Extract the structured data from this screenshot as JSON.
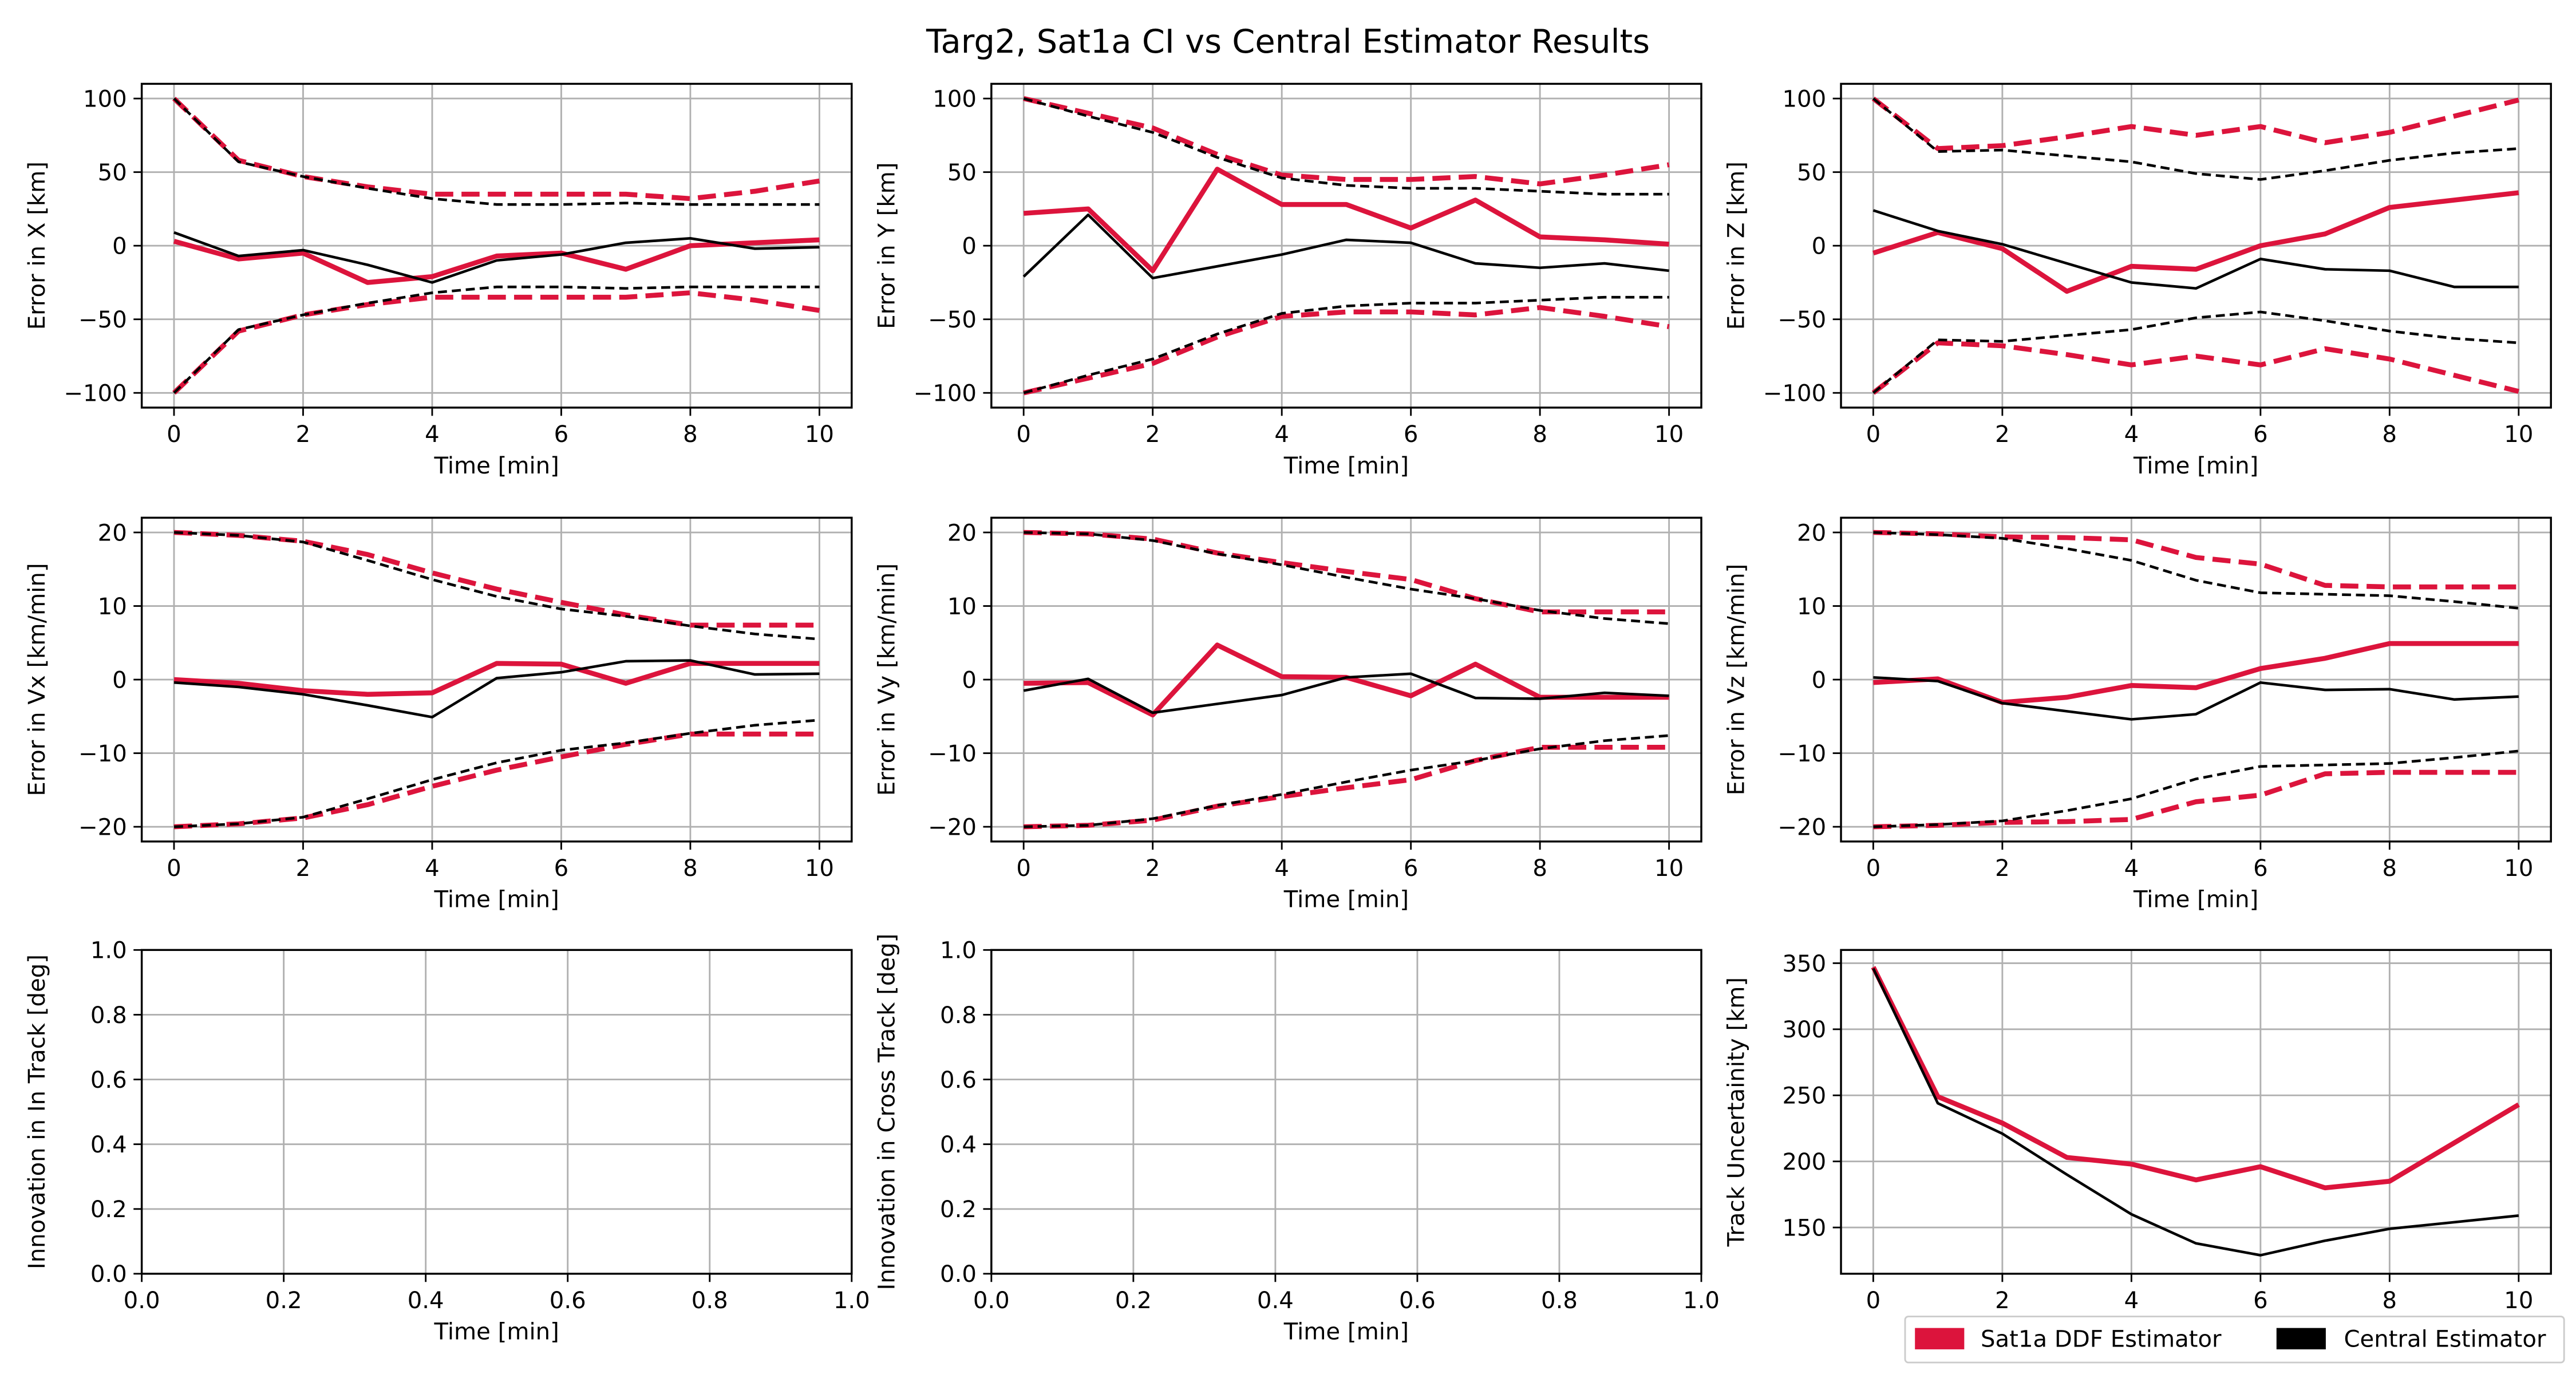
{
  "figure_title": "Targ2, Sat1a CI vs Central Estimator Results",
  "colors": {
    "ddf": "#dc143c",
    "central": "#000000",
    "grid": "#b0b0b0"
  },
  "legend": {
    "placement": "bottom-right",
    "entries": [
      {
        "label": "Sat1a DDF Estimator",
        "color": "#dc143c"
      },
      {
        "label": "Central Estimator",
        "color": "#000000"
      }
    ]
  },
  "chart_data": [
    {
      "type": "line",
      "ylabel": "Error in X [km]",
      "xlabel": "Time [min]",
      "xlim": [
        -0.5,
        10.5
      ],
      "ylim": [
        -110,
        110
      ],
      "xticks": [
        0,
        2,
        4,
        6,
        8,
        10
      ],
      "yticks": [
        -100,
        -50,
        0,
        50,
        100
      ],
      "yticklabels": [
        "−100",
        "−50",
        "0",
        "50",
        "100"
      ],
      "x": [
        0,
        1,
        2,
        3,
        4,
        5,
        6,
        7,
        8,
        9,
        10
      ],
      "series": [
        {
          "role": "ddf",
          "style": "solid",
          "values": [
            3,
            -9,
            -5,
            -25,
            -21,
            -7,
            -5,
            -16,
            0,
            2,
            4
          ]
        },
        {
          "role": "ddf",
          "style": "dashed",
          "values": [
            100,
            58,
            47,
            40,
            35,
            35,
            35,
            35,
            32,
            37,
            44
          ]
        },
        {
          "role": "ddf",
          "style": "dashed",
          "values": [
            -100,
            -58,
            -47,
            -40,
            -35,
            -35,
            -35,
            -35,
            -32,
            -37,
            -44
          ]
        },
        {
          "role": "central",
          "style": "solid",
          "values": [
            9,
            -7,
            -3,
            -13,
            -25,
            -10,
            -6,
            2,
            5,
            -2,
            -1
          ]
        },
        {
          "role": "central",
          "style": "dashed",
          "values": [
            100,
            57,
            47,
            39,
            32,
            28,
            28,
            29,
            28,
            28,
            28
          ]
        },
        {
          "role": "central",
          "style": "dashed",
          "values": [
            -100,
            -57,
            -47,
            -39,
            -32,
            -28,
            -28,
            -29,
            -28,
            -28,
            -28
          ]
        }
      ]
    },
    {
      "type": "line",
      "ylabel": "Error in Y [km]",
      "xlabel": "Time [min]",
      "xlim": [
        -0.5,
        10.5
      ],
      "ylim": [
        -110,
        110
      ],
      "xticks": [
        0,
        2,
        4,
        6,
        8,
        10
      ],
      "yticks": [
        -100,
        -50,
        0,
        50,
        100
      ],
      "yticklabels": [
        "−100",
        "−50",
        "0",
        "50",
        "100"
      ],
      "x": [
        0,
        1,
        2,
        3,
        4,
        5,
        6,
        7,
        8,
        9,
        10
      ],
      "series": [
        {
          "role": "ddf",
          "style": "solid",
          "values": [
            22,
            25,
            -17,
            52,
            28,
            28,
            12,
            31,
            6,
            4,
            1
          ]
        },
        {
          "role": "ddf",
          "style": "dashed",
          "values": [
            100,
            90,
            80,
            62,
            48,
            45,
            45,
            47,
            42,
            48,
            55
          ]
        },
        {
          "role": "ddf",
          "style": "dashed",
          "values": [
            -100,
            -90,
            -80,
            -62,
            -48,
            -45,
            -45,
            -47,
            -42,
            -48,
            -55
          ]
        },
        {
          "role": "central",
          "style": "solid",
          "values": [
            -21,
            21,
            -22,
            -14,
            -6,
            4,
            2,
            -12,
            -15,
            -12,
            -17
          ]
        },
        {
          "role": "central",
          "style": "dashed",
          "values": [
            100,
            88,
            77,
            60,
            46,
            41,
            39,
            39,
            37,
            35,
            35
          ]
        },
        {
          "role": "central",
          "style": "dashed",
          "values": [
            -100,
            -88,
            -77,
            -60,
            -46,
            -41,
            -39,
            -39,
            -37,
            -35,
            -35
          ]
        }
      ]
    },
    {
      "type": "line",
      "ylabel": "Error in Z [km]",
      "xlabel": "Time [min]",
      "xlim": [
        -0.5,
        10.5
      ],
      "ylim": [
        -110,
        110
      ],
      "xticks": [
        0,
        2,
        4,
        6,
        8,
        10
      ],
      "yticks": [
        -100,
        -50,
        0,
        50,
        100
      ],
      "yticklabels": [
        "−100",
        "−50",
        "0",
        "50",
        "100"
      ],
      "x": [
        0,
        1,
        2,
        3,
        4,
        5,
        6,
        7,
        8,
        9,
        10
      ],
      "series": [
        {
          "role": "ddf",
          "style": "solid",
          "values": [
            -5,
            9,
            -2,
            -31,
            -14,
            -16,
            0,
            8,
            26,
            31,
            36
          ]
        },
        {
          "role": "ddf",
          "style": "dashed",
          "values": [
            100,
            66,
            68,
            74,
            81,
            75,
            81,
            70,
            77,
            88,
            99
          ]
        },
        {
          "role": "ddf",
          "style": "dashed",
          "values": [
            -100,
            -66,
            -68,
            -74,
            -81,
            -75,
            -81,
            -70,
            -77,
            -88,
            -99
          ]
        },
        {
          "role": "central",
          "style": "solid",
          "values": [
            24,
            10,
            1,
            -12,
            -25,
            -29,
            -9,
            -16,
            -17,
            -28,
            -28
          ]
        },
        {
          "role": "central",
          "style": "dashed",
          "values": [
            100,
            64,
            65,
            61,
            57,
            49,
            45,
            51,
            58,
            63,
            66
          ]
        },
        {
          "role": "central",
          "style": "dashed",
          "values": [
            -100,
            -64,
            -65,
            -61,
            -57,
            -49,
            -45,
            -51,
            -58,
            -63,
            -66
          ]
        }
      ]
    },
    {
      "type": "line",
      "ylabel": "Error in Vx [km/min]",
      "xlabel": "Time [min]",
      "xlim": [
        -0.5,
        10.5
      ],
      "ylim": [
        -22,
        22
      ],
      "xticks": [
        0,
        2,
        4,
        6,
        8,
        10
      ],
      "yticks": [
        -20,
        -10,
        0,
        10,
        20
      ],
      "yticklabels": [
        "−20",
        "−10",
        "0",
        "10",
        "20"
      ],
      "x": [
        0,
        1,
        2,
        3,
        4,
        5,
        6,
        7,
        8,
        9,
        10
      ],
      "series": [
        {
          "role": "ddf",
          "style": "solid",
          "values": [
            0,
            -0.5,
            -1.5,
            -2,
            -1.8,
            2.2,
            2.1,
            -0.5,
            2.2,
            2.2,
            2.2
          ]
        },
        {
          "role": "ddf",
          "style": "dashed",
          "values": [
            20,
            19.6,
            18.8,
            17,
            14.5,
            12.3,
            10.5,
            8.8,
            7.4,
            7.4,
            7.4
          ]
        },
        {
          "role": "ddf",
          "style": "dashed",
          "values": [
            -20,
            -19.6,
            -18.8,
            -17,
            -14.5,
            -12.3,
            -10.5,
            -8.8,
            -7.4,
            -7.4,
            -7.4
          ]
        },
        {
          "role": "central",
          "style": "solid",
          "values": [
            -0.4,
            -1,
            -2,
            -3.5,
            -5.1,
            0.2,
            1,
            2.5,
            2.6,
            0.7,
            0.8
          ]
        },
        {
          "role": "central",
          "style": "dashed",
          "values": [
            20,
            19.6,
            18.7,
            16.2,
            13.6,
            11.3,
            9.6,
            8.6,
            7.3,
            6.2,
            5.5
          ]
        },
        {
          "role": "central",
          "style": "dashed",
          "values": [
            -20,
            -19.6,
            -18.7,
            -16.2,
            -13.6,
            -11.3,
            -9.6,
            -8.6,
            -7.3,
            -6.2,
            -5.5
          ]
        }
      ]
    },
    {
      "type": "line",
      "ylabel": "Error in Vy [km/min]",
      "xlabel": "Time [min]",
      "xlim": [
        -0.5,
        10.5
      ],
      "ylim": [
        -22,
        22
      ],
      "xticks": [
        0,
        2,
        4,
        6,
        8,
        10
      ],
      "yticks": [
        -20,
        -10,
        0,
        10,
        20
      ],
      "yticklabels": [
        "−20",
        "−10",
        "0",
        "10",
        "20"
      ],
      "x": [
        0,
        1,
        2,
        3,
        4,
        5,
        6,
        7,
        8,
        9,
        10
      ],
      "series": [
        {
          "role": "ddf",
          "style": "solid",
          "values": [
            -0.5,
            -0.4,
            -4.8,
            4.7,
            0.4,
            0.3,
            -2.2,
            2.1,
            -2.4,
            -2.4,
            -2.4
          ]
        },
        {
          "role": "ddf",
          "style": "dashed",
          "values": [
            20,
            19.8,
            19.1,
            17.2,
            15.9,
            14.7,
            13.6,
            11,
            9.2,
            9.2,
            9.2
          ]
        },
        {
          "role": "ddf",
          "style": "dashed",
          "values": [
            -20,
            -19.8,
            -19.1,
            -17.2,
            -15.9,
            -14.7,
            -13.6,
            -11,
            -9.2,
            -9.2,
            -9.2
          ]
        },
        {
          "role": "central",
          "style": "solid",
          "values": [
            -1.5,
            0.1,
            -4.5,
            -3.3,
            -2.1,
            0.3,
            0.8,
            -2.5,
            -2.6,
            -1.8,
            -2.2
          ]
        },
        {
          "role": "central",
          "style": "dashed",
          "values": [
            20,
            19.8,
            18.9,
            17.1,
            15.6,
            13.9,
            12.3,
            11,
            9.4,
            8.3,
            7.6
          ]
        },
        {
          "role": "central",
          "style": "dashed",
          "values": [
            -20,
            -19.8,
            -18.9,
            -17.1,
            -15.6,
            -13.9,
            -12.3,
            -11,
            -9.4,
            -8.3,
            -7.6
          ]
        }
      ]
    },
    {
      "type": "line",
      "ylabel": "Error in Vz [km/min]",
      "xlabel": "Time [min]",
      "xlim": [
        -0.5,
        10.5
      ],
      "ylim": [
        -22,
        22
      ],
      "xticks": [
        0,
        2,
        4,
        6,
        8,
        10
      ],
      "yticks": [
        -20,
        -10,
        0,
        10,
        20
      ],
      "yticklabels": [
        "−20",
        "−10",
        "0",
        "10",
        "20"
      ],
      "x": [
        0,
        1,
        2,
        3,
        4,
        5,
        6,
        7,
        8,
        9,
        10
      ],
      "series": [
        {
          "role": "ddf",
          "style": "solid",
          "values": [
            -0.4,
            0.1,
            -3.1,
            -2.4,
            -0.8,
            -1.1,
            1.5,
            2.9,
            4.9,
            4.9,
            4.9
          ]
        },
        {
          "role": "ddf",
          "style": "dashed",
          "values": [
            20,
            19.8,
            19.4,
            19.3,
            19,
            16.6,
            15.7,
            12.8,
            12.6,
            12.6,
            12.6
          ]
        },
        {
          "role": "ddf",
          "style": "dashed",
          "values": [
            -20,
            -19.8,
            -19.4,
            -19.3,
            -19,
            -16.6,
            -15.7,
            -12.8,
            -12.6,
            -12.6,
            -12.6
          ]
        },
        {
          "role": "central",
          "style": "solid",
          "values": [
            0.3,
            -0.2,
            -3.2,
            -4.3,
            -5.4,
            -4.7,
            -0.4,
            -1.4,
            -1.3,
            -2.7,
            -2.3
          ]
        },
        {
          "role": "central",
          "style": "dashed",
          "values": [
            20,
            19.7,
            19.2,
            17.8,
            16.2,
            13.5,
            11.8,
            11.6,
            11.4,
            10.6,
            9.7
          ]
        },
        {
          "role": "central",
          "style": "dashed",
          "values": [
            -20,
            -19.7,
            -19.2,
            -17.8,
            -16.2,
            -13.5,
            -11.8,
            -11.6,
            -11.4,
            -10.6,
            -9.7
          ]
        }
      ]
    },
    {
      "type": "line",
      "ylabel": "Innovation in In Track [deg]",
      "xlabel": "Time [min]",
      "xlim": [
        0,
        1
      ],
      "ylim": [
        0,
        1
      ],
      "xticks": [
        0,
        0.2,
        0.4,
        0.6,
        0.8,
        1.0
      ],
      "xticklabels": [
        "0.0",
        "0.2",
        "0.4",
        "0.6",
        "0.8",
        "1.0"
      ],
      "yticks": [
        0,
        0.2,
        0.4,
        0.6,
        0.8,
        1.0
      ],
      "yticklabels": [
        "0.0",
        "0.2",
        "0.4",
        "0.6",
        "0.8",
        "1.0"
      ],
      "x": [],
      "series": []
    },
    {
      "type": "line",
      "ylabel": "Innovation in Cross Track [deg]",
      "xlabel": "Time [min]",
      "xlim": [
        0,
        1
      ],
      "ylim": [
        0,
        1
      ],
      "xticks": [
        0,
        0.2,
        0.4,
        0.6,
        0.8,
        1.0
      ],
      "xticklabels": [
        "0.0",
        "0.2",
        "0.4",
        "0.6",
        "0.8",
        "1.0"
      ],
      "yticks": [
        0,
        0.2,
        0.4,
        0.6,
        0.8,
        1.0
      ],
      "yticklabels": [
        "0.0",
        "0.2",
        "0.4",
        "0.6",
        "0.8",
        "1.0"
      ],
      "x": [],
      "series": []
    },
    {
      "type": "line",
      "ylabel": "Track Uncertainity [km]",
      "xlabel": "Time [min]",
      "xlim": [
        -0.5,
        10.5
      ],
      "ylim": [
        115,
        360
      ],
      "xticks": [
        0,
        2,
        4,
        6,
        8,
        10
      ],
      "yticks": [
        150,
        200,
        250,
        300,
        350
      ],
      "x": [
        0,
        1,
        2,
        3,
        4,
        5,
        6,
        7,
        8,
        9,
        10
      ],
      "series": [
        {
          "role": "ddf",
          "style": "solid",
          "values": [
            347,
            249,
            229,
            203,
            198,
            186,
            196,
            180,
            185,
            214,
            243
          ]
        },
        {
          "role": "central",
          "style": "solid",
          "values": [
            346,
            244,
            221,
            190,
            160,
            138,
            129,
            140,
            149,
            154,
            159
          ]
        }
      ]
    }
  ]
}
